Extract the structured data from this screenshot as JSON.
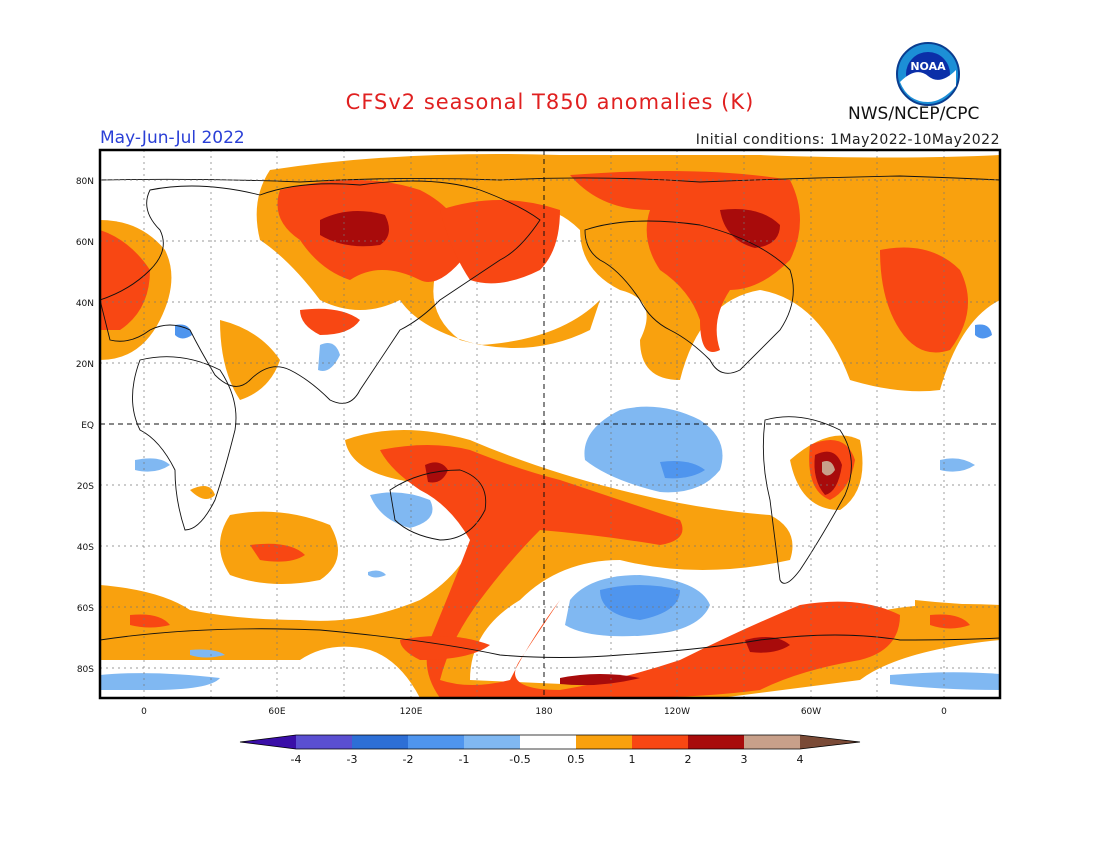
{
  "title": "CFSv2 seasonal T850 anomalies (K)",
  "season": "May-Jun-Jul 2022",
  "initial_conditions": "Initial conditions: 1May2022-10May2022",
  "agency": "NWS/NCEP/CPC",
  "logo_text": "NOAA",
  "lat_labels": [
    "80N",
    "60N",
    "40N",
    "20N",
    "EQ",
    "20S",
    "40S",
    "60S",
    "80S"
  ],
  "lon_labels": [
    "0",
    "60E",
    "120E",
    "180",
    "120W",
    "60W",
    "0"
  ],
  "colorbar": {
    "labels": [
      "-4",
      "-3",
      "-2",
      "-1",
      "-0.5",
      "0.5",
      "1",
      "2",
      "3",
      "4"
    ],
    "colors": [
      "#3a0ea8",
      "#5a4fd1",
      "#2d6fd6",
      "#4f95ee",
      "#80b8f2",
      "#ffffff",
      "#f9a10e",
      "#f84713",
      "#a80b0b",
      "#c8a08a",
      "#7a4a36"
    ]
  },
  "colors": {
    "light_warm": "#f9a10e",
    "warm": "#f84713",
    "hot": "#a80b0b",
    "very_hot": "#c8a08a",
    "light_cool": "#80b8f2",
    "cool": "#4f95ee"
  }
}
